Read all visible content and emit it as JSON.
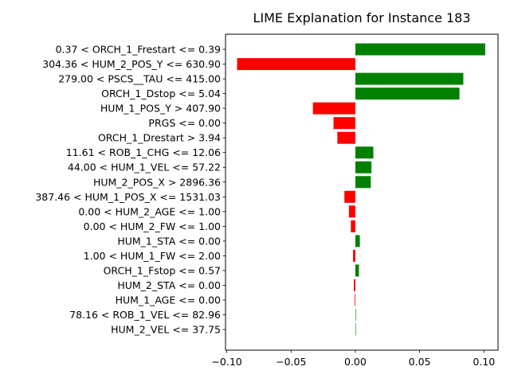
{
  "chart_data": {
    "type": "bar",
    "orientation": "horizontal",
    "title": "LIME Explanation for Instance 183",
    "xlabel": "",
    "ylabel": "",
    "xlim": [
      -0.101,
      0.111
    ],
    "xticks": [
      -0.1,
      -0.05,
      0.0,
      0.05,
      0.1
    ],
    "xtick_labels": [
      "−0.10",
      "−0.05",
      "0.00",
      "0.05",
      "0.10"
    ],
    "colors": {
      "positive": "#008000",
      "negative": "#ff0000"
    },
    "bars": [
      {
        "label": "0.37 < ORCH_1_Frestart <= 0.39",
        "value": 0.101
      },
      {
        "label": "304.36 < HUM_2_POS_Y <= 630.90",
        "value": -0.092
      },
      {
        "label": "279.00 < PSCS__TAU <= 415.00",
        "value": 0.084
      },
      {
        "label": "ORCH_1_Dstop <= 5.04",
        "value": 0.081
      },
      {
        "label": "HUM_1_POS_Y > 407.90",
        "value": -0.033
      },
      {
        "label": "PRGS <= 0.00",
        "value": -0.017
      },
      {
        "label": "ORCH_1_Drestart > 3.94",
        "value": -0.014
      },
      {
        "label": "11.61 < ROB_1_CHG <= 12.06",
        "value": 0.014
      },
      {
        "label": "44.00 < HUM_1_VEL <= 57.22",
        "value": 0.0125
      },
      {
        "label": "HUM_2_POS_X > 2896.36",
        "value": 0.012
      },
      {
        "label": "387.46 < HUM_1_POS_X <= 1531.03",
        "value": -0.0085
      },
      {
        "label": "0.00 < HUM_2_AGE <= 1.00",
        "value": -0.005
      },
      {
        "label": "0.00 < HUM_2_FW <= 1.00",
        "value": -0.0035
      },
      {
        "label": "HUM_1_STA <= 0.00",
        "value": 0.0035
      },
      {
        "label": "1.00 < HUM_1_FW <= 2.00",
        "value": -0.0018
      },
      {
        "label": "ORCH_1_Fstop <= 0.57",
        "value": 0.0028
      },
      {
        "label": "HUM_2_STA <= 0.00",
        "value": -0.0012
      },
      {
        "label": "HUM_1_AGE <= 0.00",
        "value": -0.0005
      },
      {
        "label": "78.16 < ROB_1_VEL <= 82.96",
        "value": 0.0004
      },
      {
        "label": "HUM_2_VEL <= 37.75",
        "value": 0.0003
      }
    ]
  }
}
